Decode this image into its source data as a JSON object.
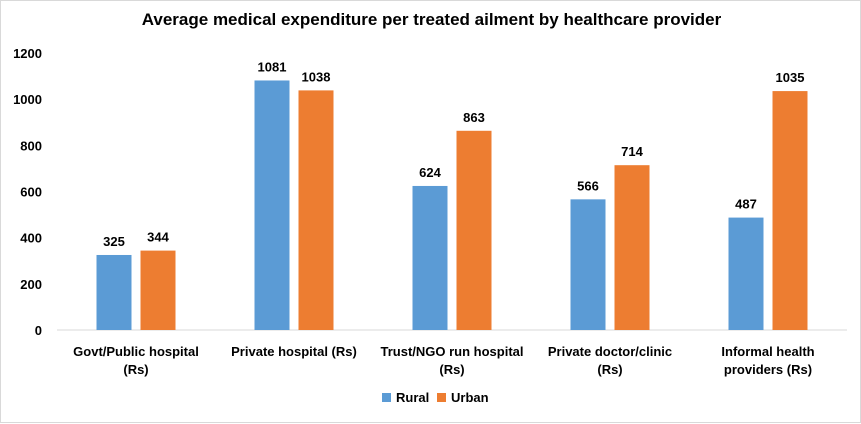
{
  "chart_data": {
    "type": "bar",
    "title": "Average medical expenditure per treated ailment by healthcare provider",
    "xlabel": "",
    "ylabel": "",
    "categories": [
      [
        "Govt/Public hospital",
        "(Rs)"
      ],
      [
        "Private hospital (Rs)"
      ],
      [
        "Trust/NGO run hospital",
        "(Rs)"
      ],
      [
        "Private doctor/clinic",
        "(Rs)"
      ],
      [
        "Informal health",
        "providers (Rs)"
      ]
    ],
    "series": [
      {
        "name": "Rural",
        "color": "#5b9bd5",
        "values": [
          325,
          1081,
          624,
          566,
          487
        ]
      },
      {
        "name": "Urban",
        "color": "#ed7d31",
        "values": [
          344,
          1038,
          863,
          714,
          1035
        ]
      }
    ],
    "ylim": [
      0,
      1200
    ],
    "yticks": [
      0,
      200,
      400,
      600,
      800,
      1000,
      1200
    ],
    "grid": false,
    "legend": "bottom"
  }
}
